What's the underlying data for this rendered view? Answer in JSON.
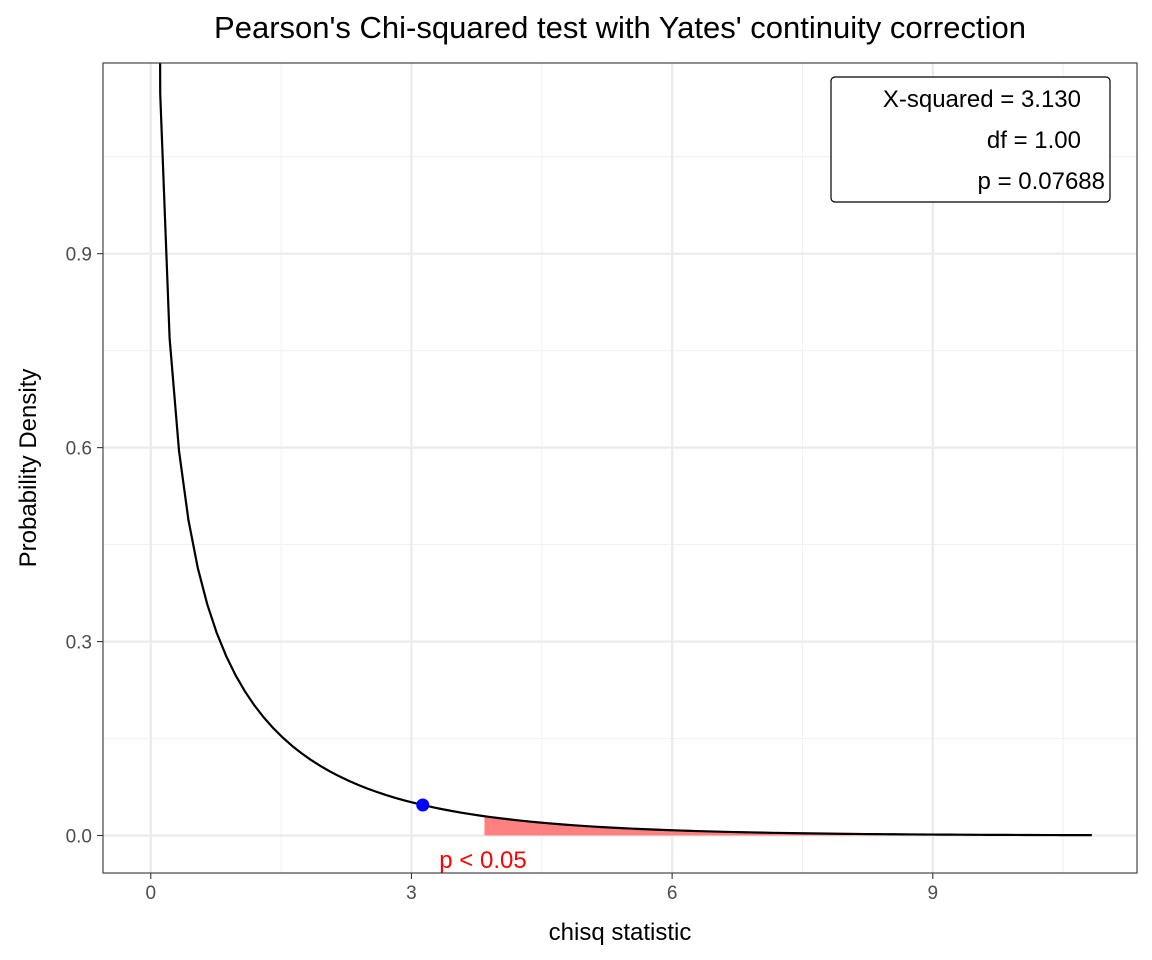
{
  "chart_data": {
    "type": "line",
    "title": "Pearson's Chi-squared test with Yates' continuity correction",
    "xlabel": "chisq statistic",
    "ylabel": "Probability Density",
    "xlim": [
      -0.55,
      11.35
    ],
    "ylim": [
      -0.058,
      1.195
    ],
    "x_ticks": [
      0,
      3,
      6,
      9
    ],
    "x_tick_labels": [
      "0",
      "3",
      "6",
      "9"
    ],
    "y_ticks": [
      0.0,
      0.3,
      0.6,
      0.9
    ],
    "y_tick_labels": [
      "0.0",
      "0.3",
      "0.6",
      "0.9"
    ],
    "grid": true,
    "distribution": "chi-squared",
    "df": 1,
    "curve_x_range": [
      0,
      10.83
    ],
    "critical_value": 3.84,
    "observed_statistic": 3.13,
    "rejection_label": "p < 0.05",
    "stats_box": {
      "position": "top-right",
      "lines": [
        "X-squared = 3.130",
        "df = 1.00",
        "p = 0.07688"
      ]
    },
    "colors": {
      "curve": "#000000",
      "rejection_fill": "#ff8080",
      "rejection_label": "#ff0000",
      "observed_point": "#0000ff",
      "grid_major": "#ebebeb",
      "grid_minor": "#f2f2f2"
    }
  }
}
